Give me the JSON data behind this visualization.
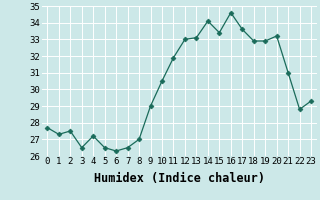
{
  "x": [
    0,
    1,
    2,
    3,
    4,
    5,
    6,
    7,
    8,
    9,
    10,
    11,
    12,
    13,
    14,
    15,
    16,
    17,
    18,
    19,
    20,
    21,
    22,
    23
  ],
  "y": [
    27.7,
    27.3,
    27.5,
    26.5,
    27.2,
    26.5,
    26.3,
    26.5,
    27.0,
    29.0,
    30.5,
    31.9,
    33.0,
    33.1,
    34.1,
    33.4,
    34.6,
    33.6,
    32.9,
    32.9,
    33.2,
    31.0,
    28.8,
    29.3
  ],
  "line_color": "#1a6b5a",
  "marker": "D",
  "marker_size": 2.5,
  "xlabel": "Humidex (Indice chaleur)",
  "ylim": [
    26,
    35
  ],
  "xlim": [
    -0.5,
    23.5
  ],
  "yticks": [
    26,
    27,
    28,
    29,
    30,
    31,
    32,
    33,
    34,
    35
  ],
  "xtick_labels": [
    "0",
    "1",
    "2",
    "3",
    "4",
    "5",
    "6",
    "7",
    "8",
    "9",
    "10",
    "11",
    "12",
    "13",
    "14",
    "15",
    "16",
    "17",
    "18",
    "19",
    "20",
    "21",
    "22",
    "23"
  ],
  "bg_color": "#cce8e8",
  "grid_color": "#ffffff",
  "tick_fontsize": 6.5,
  "xlabel_fontsize": 8.5
}
